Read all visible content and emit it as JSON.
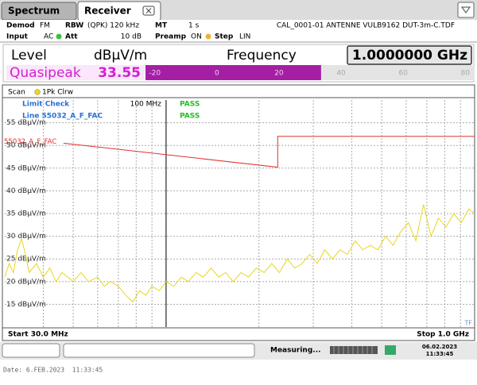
{
  "tabs": [
    "Spectrum",
    "Receiver"
  ],
  "settings": {
    "demod_label": "Demod",
    "demod": "FM",
    "rbw_label": "RBW",
    "rbw": "(QPK) 120 kHz",
    "mt_label": "MT",
    "mt": "1 s",
    "file": "CAL_0001-01 ANTENNE VULB9162 DUT-3m-C.TDF",
    "input_label": "Input",
    "input": "AC",
    "att_label": "Att",
    "att": "10 dB",
    "preamp_label": "Preamp",
    "preamp": "ON",
    "step_label": "Step",
    "step": "LIN"
  },
  "level": {
    "label": "Level",
    "unit": "dBµV/m",
    "frequency_label": "Frequency",
    "frequency": "1.0000000 GHz",
    "detector": "Quasipeak",
    "value": 33.55,
    "bar_lim": [
      -23,
      83
    ],
    "bar_ticks": [
      -20,
      0,
      20,
      40,
      60,
      80
    ],
    "bar_color": "#a51fa5"
  },
  "chart_data": {
    "type": "line",
    "scan_label": "Scan",
    "start": "Start 30.0 MHz",
    "stop": "Stop 1.0 GHz",
    "corner_label": "TF",
    "xlim": [
      30,
      1000
    ],
    "xscale": "log",
    "ylim": [
      10,
      60
    ],
    "yticks": [
      {
        "value": 55,
        "label": "55 dBµV/m"
      },
      {
        "value": 50,
        "label": "50 dBµV/m"
      },
      {
        "value": 45,
        "label": "45 dBµV/m"
      },
      {
        "value": 40,
        "label": "40 dBµV/m"
      },
      {
        "value": 35,
        "label": "35 dBµV/m"
      },
      {
        "value": 30,
        "label": "30 dBµV/m"
      },
      {
        "value": 25,
        "label": "25 dBµV/m"
      },
      {
        "value": 20,
        "label": "20 dBµV/m"
      },
      {
        "value": 15,
        "label": "15 dBµV/m"
      }
    ],
    "grid": true,
    "series": [
      {
        "name": "1Pk Clrw",
        "color": "#e8d620",
        "x": [
          30,
          31,
          32,
          33,
          34,
          35,
          36,
          38,
          40,
          42,
          44,
          46,
          48,
          50,
          53,
          56,
          60,
          63,
          66,
          70,
          74,
          78,
          82,
          86,
          90,
          95,
          100,
          106,
          112,
          118,
          125,
          132,
          140,
          148,
          156,
          165,
          175,
          185,
          196,
          208,
          220,
          233,
          247,
          261,
          276,
          292,
          309,
          327,
          346,
          366,
          387,
          410,
          434,
          459,
          486,
          514,
          544,
          576,
          610,
          645,
          683,
          722,
          764,
          808,
          855,
          905,
          958,
          1000
        ],
        "values": [
          21,
          24,
          22,
          27,
          29.5,
          26,
          22,
          24,
          21,
          23,
          20,
          22,
          21,
          20,
          22,
          20,
          21,
          19,
          20,
          19,
          17,
          15.5,
          18,
          17,
          19,
          18,
          20,
          19,
          21,
          20,
          22,
          21,
          23,
          21,
          22,
          20,
          22,
          21,
          23,
          22,
          24,
          22,
          25,
          23,
          24,
          26,
          24,
          27,
          25,
          27,
          26,
          29,
          27,
          28,
          27,
          30,
          28,
          31,
          33,
          29,
          37,
          30,
          34,
          32,
          35,
          33,
          36,
          35
        ]
      },
      {
        "name": "55032_A_F_FAC",
        "color": "#e03030",
        "x": [
          46.5,
          230,
          230,
          1000
        ],
        "values": [
          50.5,
          45.2,
          52,
          52
        ]
      }
    ],
    "marker": {
      "x": 100,
      "label": "100 MHz"
    },
    "limit_check": {
      "title": "Limit Check",
      "result": "PASS",
      "line": "Line 55032_A_F_FAC",
      "line_result": "PASS"
    }
  },
  "status": {
    "state": "Measuring...",
    "date": "06.02.2023",
    "time": "11:33:45"
  },
  "footer": "Date: 6.FEB.2023  11:33:45"
}
